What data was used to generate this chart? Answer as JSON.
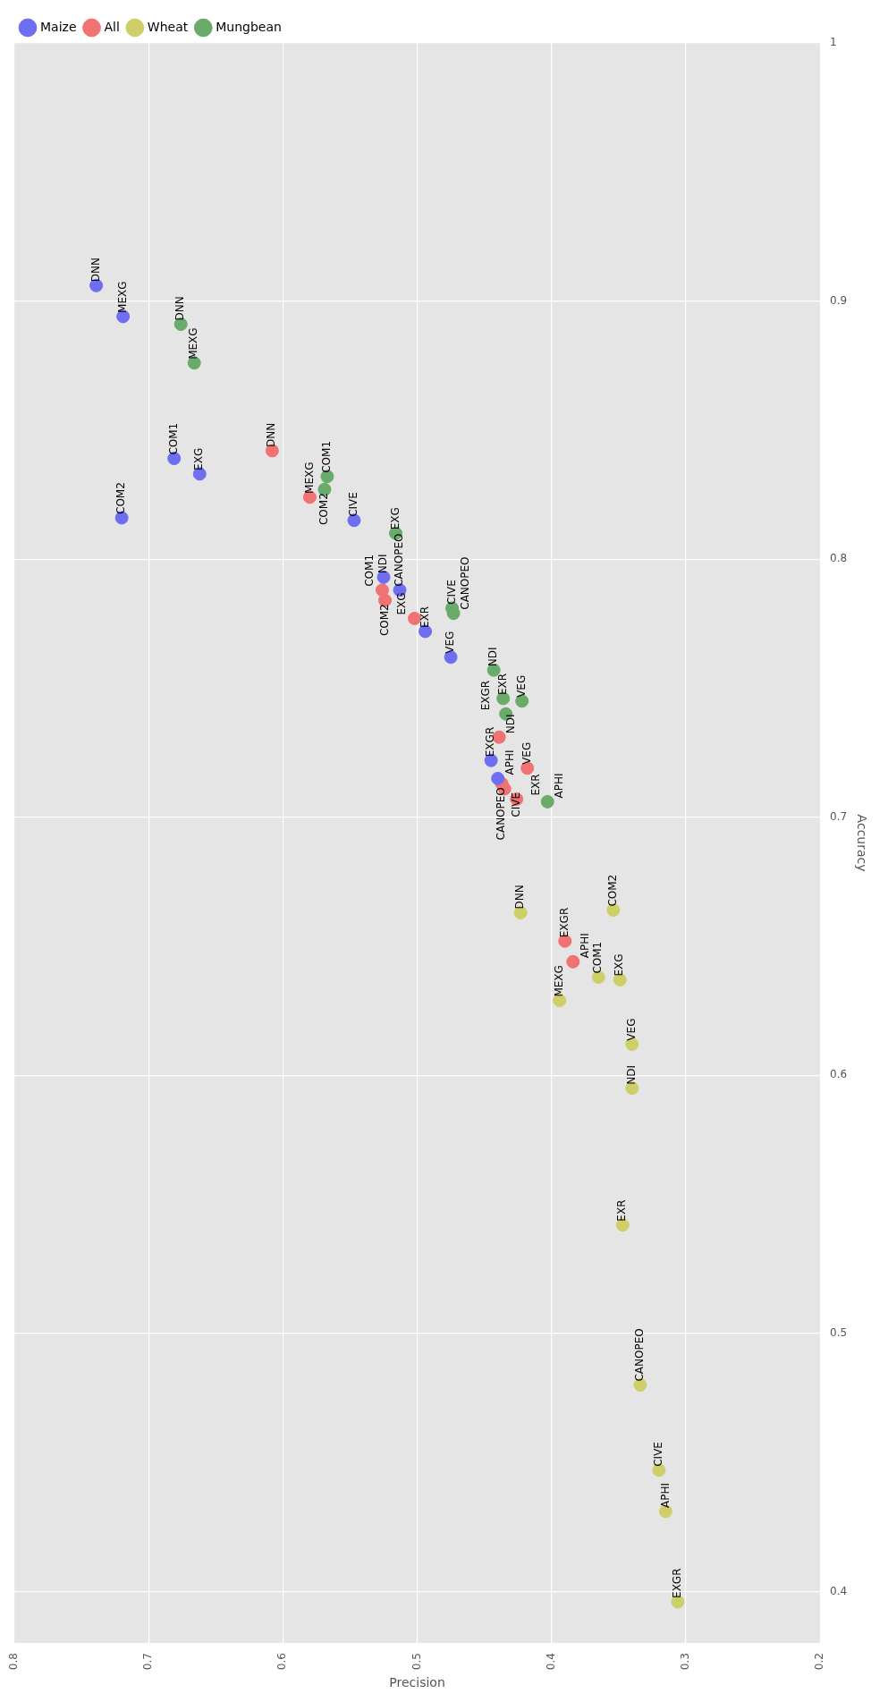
{
  "chart_data": {
    "type": "scatter",
    "xlabel": "Precision",
    "ylabel": "Accuracy",
    "xlim": [
      0.8,
      0.2
    ],
    "xticks": [
      0.8,
      0.7,
      0.6,
      0.5,
      0.4,
      0.3,
      0.2
    ],
    "ylim": [
      0.38,
      1.0
    ],
    "yticks": [
      0.4,
      0.5,
      0.6,
      0.7,
      0.8,
      0.9,
      1.0
    ],
    "grid": true,
    "legend": "top left",
    "marker": "circle",
    "series": [
      {
        "name": "Maize",
        "color": "#6e6ef0",
        "x": [
          0.739,
          0.719,
          0.681,
          0.662,
          0.72,
          0.547,
          0.525,
          0.513,
          0.494,
          0.475,
          0.445,
          0.44
        ],
        "values": [
          0.906,
          0.894,
          0.839,
          0.833,
          0.816,
          0.815,
          0.793,
          0.788,
          0.772,
          0.762,
          0.722,
          0.715
        ],
        "value_labels": [
          "DNN",
          "MEXG",
          "COM1",
          "EXG",
          "COM2",
          "CIVE",
          "NDI",
          "CANOPEO",
          "EXR",
          "VEG",
          "EXGR",
          "APHI"
        ]
      },
      {
        "name": "All",
        "color": "#f07272",
        "x": [
          0.608,
          0.58,
          0.526,
          0.524,
          0.502,
          0.439,
          0.437,
          0.435,
          0.418,
          0.426,
          0.39,
          0.384
        ],
        "values": [
          0.842,
          0.824,
          0.788,
          0.784,
          0.777,
          0.731,
          0.713,
          0.711,
          0.719,
          0.707,
          0.652,
          0.644
        ],
        "value_labels": [
          "DNN",
          "MEXG",
          "COM1",
          "COM2",
          "EXG",
          "NDI",
          "CANOPEO",
          "CIVE",
          "VEG",
          "EXR",
          "EXGR",
          "APHI"
        ]
      },
      {
        "name": "Wheat",
        "color": "#cfcf6a",
        "x": [
          0.423,
          0.354,
          0.394,
          0.365,
          0.349,
          0.34,
          0.34,
          0.347,
          0.334,
          0.32,
          0.315,
          0.306
        ],
        "values": [
          0.663,
          0.664,
          0.629,
          0.638,
          0.637,
          0.612,
          0.595,
          0.542,
          0.48,
          0.447,
          0.431,
          0.396
        ],
        "value_labels": [
          "DNN",
          "COM2",
          "MEXG",
          "COM1",
          "EXG",
          "VEG",
          "NDI",
          "EXR",
          "CANOPEO",
          "CIVE",
          "APHI",
          "EXGR"
        ]
      },
      {
        "name": "Mungbean",
        "color": "#6aaa6a",
        "x": [
          0.676,
          0.666,
          0.567,
          0.569,
          0.516,
          0.474,
          0.473,
          0.443,
          0.436,
          0.422,
          0.434,
          0.403
        ],
        "values": [
          0.891,
          0.876,
          0.832,
          0.827,
          0.81,
          0.781,
          0.779,
          0.757,
          0.746,
          0.745,
          0.74,
          0.706
        ],
        "value_labels": [
          "DNN",
          "MEXG",
          "COM1",
          "COM2",
          "EXG",
          "CIVE",
          "CANOPEO",
          "NDI",
          "EXR",
          "VEG",
          "EXGR",
          "APHI"
        ]
      }
    ]
  }
}
